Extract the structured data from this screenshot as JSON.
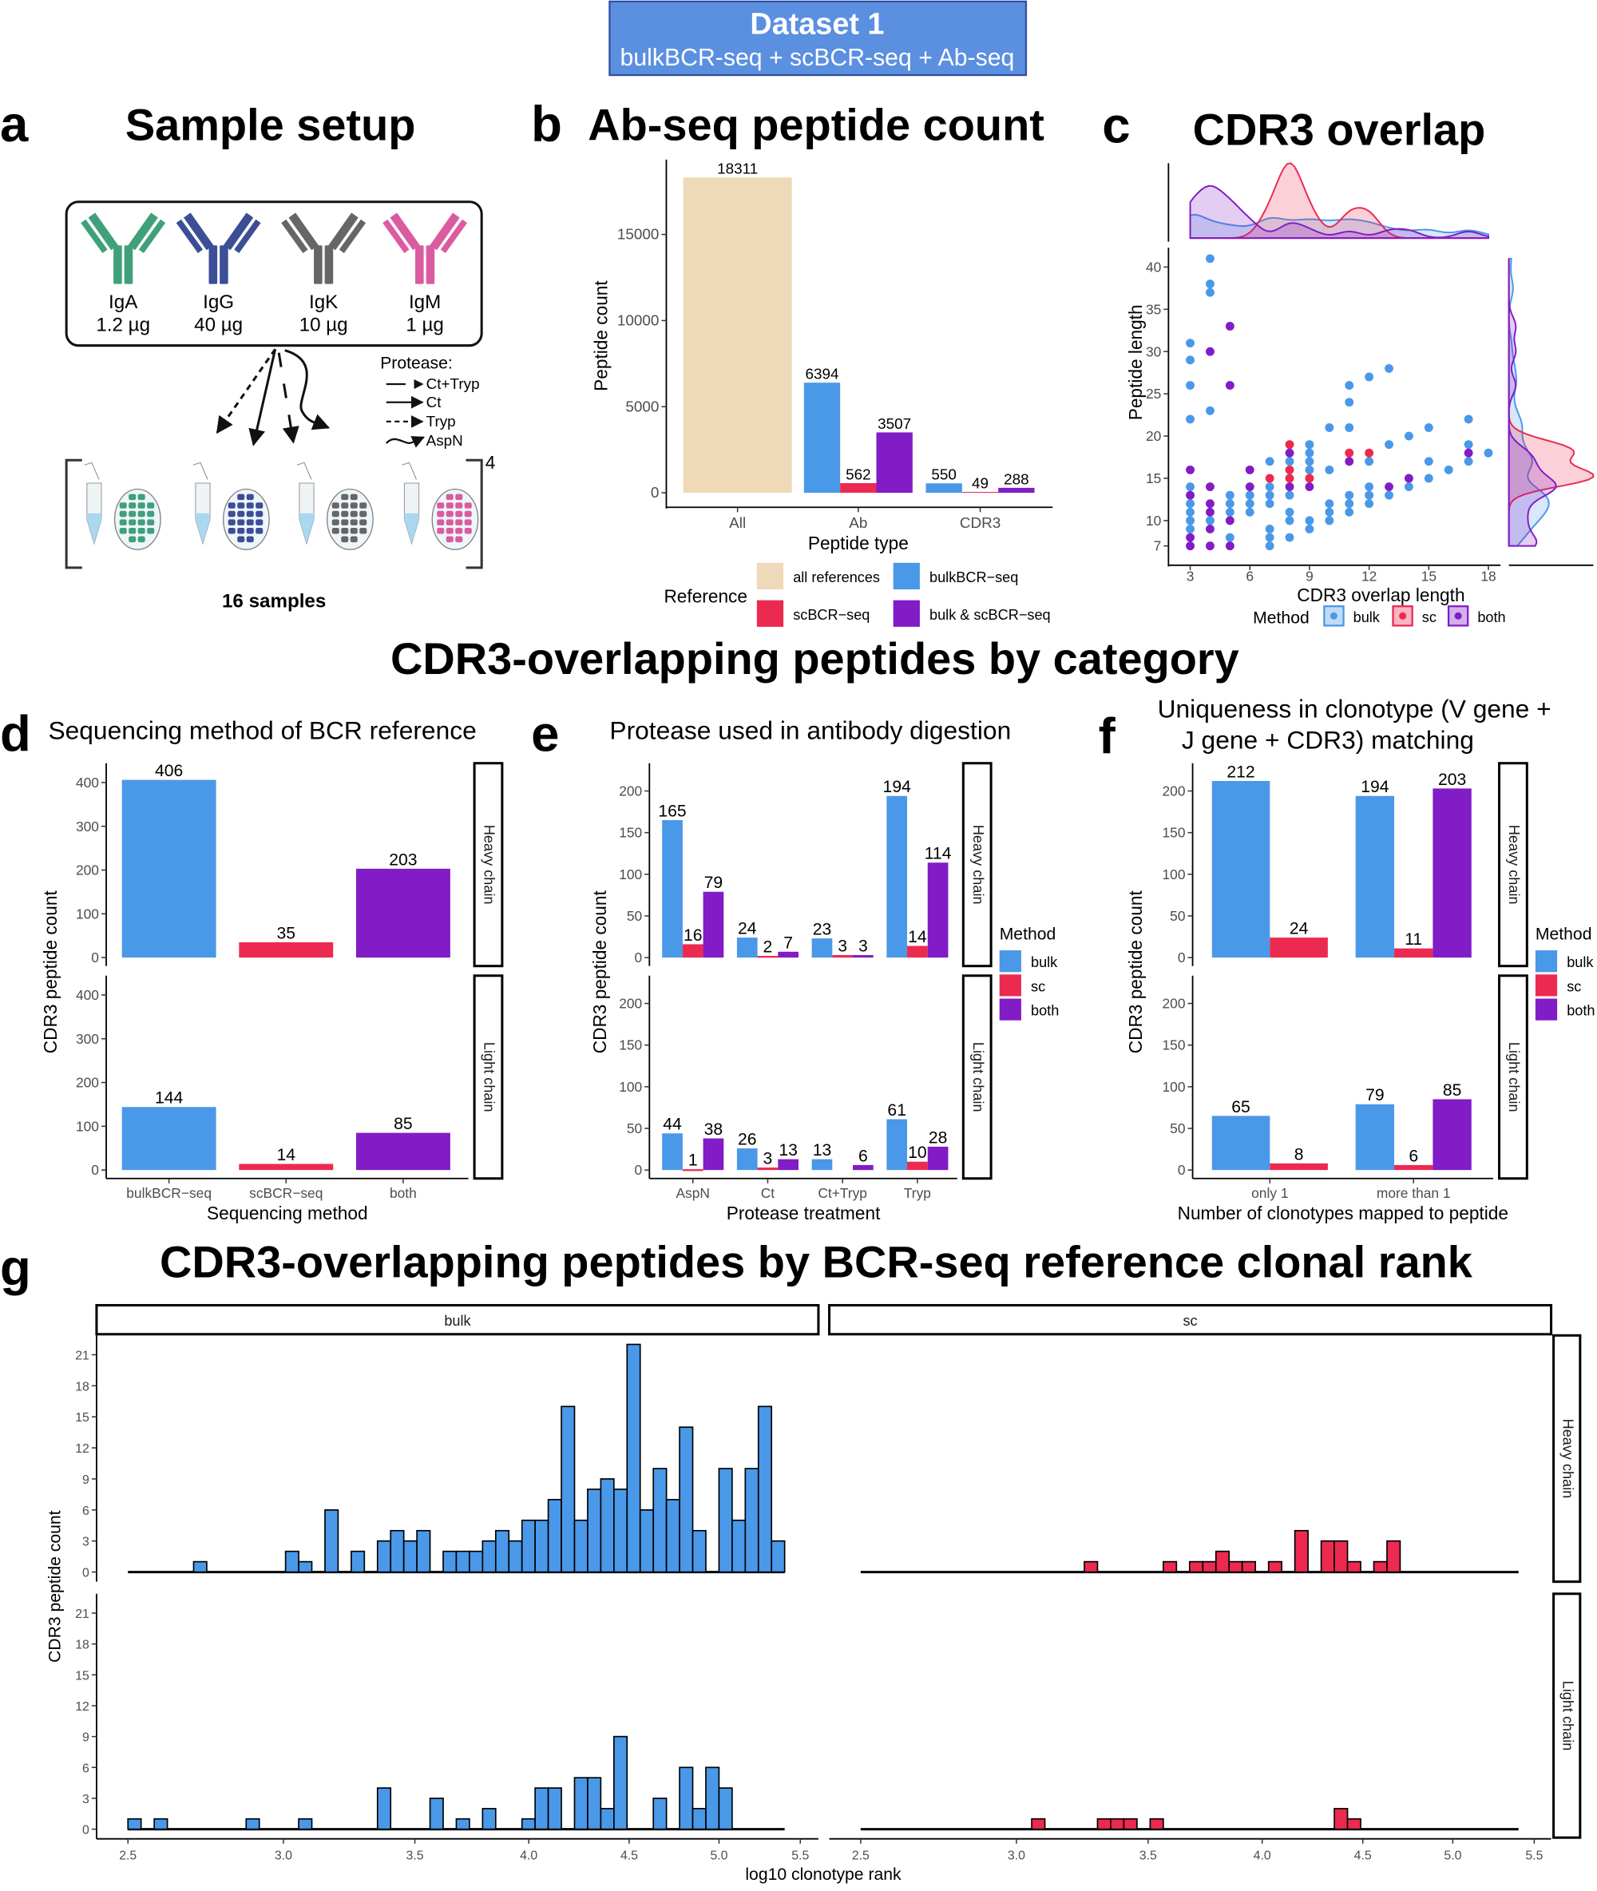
{
  "header": {
    "title": "Dataset 1",
    "subtitle": "bulkBCR-seq + scBCR-seq + Ab-seq",
    "color": "#5B8FE0"
  },
  "colors": {
    "bulk": "#4A98E8",
    "sc": "#EC2A50",
    "both": "#821CC6",
    "all": "#EED9B8"
  },
  "panel_a": {
    "label": "a",
    "title": "Sample setup",
    "antibodies": [
      {
        "name": "IgA",
        "amount": "1.2 µg",
        "color": "#3FA07A"
      },
      {
        "name": "IgG",
        "amount": "40 µg",
        "color": "#3C4E96"
      },
      {
        "name": "IgK",
        "amount": "10 µg",
        "color": "#666666"
      },
      {
        "name": "IgM",
        "amount": "1 µg",
        "color": "#DB5BA0"
      }
    ],
    "protease_title": "Protease:",
    "proteases": [
      "Ct+Tryp",
      "Ct",
      "Tryp",
      "AspN"
    ],
    "replicates": "4",
    "samples": "16 samples"
  },
  "section_title": "CDR3-overlapping peptides by category",
  "chart_data": [
    {
      "panel": "b",
      "label": "b",
      "title": "Ab-seq peptide count",
      "type": "bar",
      "xlabel": "Peptide type",
      "ylabel": "Peptide count",
      "categories": [
        "All",
        "Ab",
        "CDR3"
      ],
      "yticks": [
        0,
        5000,
        10000,
        15000
      ],
      "legend_title": "Reference",
      "legend_position": "bottom",
      "series": [
        {
          "name": "all references",
          "color": "all",
          "values": [
            18311,
            null,
            null
          ]
        },
        {
          "name": "bulkBCR−seq",
          "color": "bulk",
          "values": [
            null,
            6394,
            550
          ]
        },
        {
          "name": "scBCR−seq",
          "color": "sc",
          "values": [
            null,
            562,
            49
          ]
        },
        {
          "name": "bulk & scBCR−seq",
          "color": "both",
          "values": [
            null,
            3507,
            288
          ]
        }
      ]
    },
    {
      "panel": "c",
      "label": "c",
      "title": "CDR3 overlap",
      "type": "scatter",
      "xlabel": "CDR3 overlap length",
      "ylabel": "Peptide length",
      "xticks": [
        3,
        6,
        9,
        12,
        15,
        18
      ],
      "yticks": [
        7,
        10,
        15,
        20,
        25,
        30,
        35,
        40
      ],
      "marginal": "density",
      "legend_title": "Method",
      "legend_position": "bottom",
      "series": [
        {
          "name": "bulk",
          "color": "bulk",
          "points": [
            [
              3,
              31
            ],
            [
              3,
              29
            ],
            [
              3,
              26
            ],
            [
              3,
              22
            ],
            [
              3,
              14
            ],
            [
              3,
              12
            ],
            [
              3,
              11
            ],
            [
              3,
              10
            ],
            [
              3,
              9
            ],
            [
              4,
              41
            ],
            [
              4,
              38
            ],
            [
              4,
              37
            ],
            [
              4,
              23
            ],
            [
              4,
              10
            ],
            [
              5,
              13
            ],
            [
              5,
              12
            ],
            [
              5,
              11
            ],
            [
              5,
              8
            ],
            [
              6,
              13
            ],
            [
              6,
              12
            ],
            [
              6,
              11
            ],
            [
              7,
              17
            ],
            [
              7,
              14
            ],
            [
              7,
              13
            ],
            [
              7,
              12
            ],
            [
              7,
              9
            ],
            [
              7,
              8
            ],
            [
              7,
              7
            ],
            [
              8,
              17
            ],
            [
              8,
              13
            ],
            [
              8,
              11
            ],
            [
              8,
              10
            ],
            [
              8,
              8
            ],
            [
              9,
              19
            ],
            [
              9,
              18
            ],
            [
              9,
              17
            ],
            [
              9,
              16
            ],
            [
              9,
              10
            ],
            [
              9,
              9
            ],
            [
              10,
              21
            ],
            [
              10,
              16
            ],
            [
              10,
              12
            ],
            [
              10,
              11
            ],
            [
              10,
              10
            ],
            [
              11,
              26
            ],
            [
              11,
              24
            ],
            [
              11,
              21
            ],
            [
              11,
              13
            ],
            [
              11,
              12
            ],
            [
              11,
              11
            ],
            [
              12,
              27
            ],
            [
              12,
              17
            ],
            [
              12,
              14
            ],
            [
              12,
              13
            ],
            [
              12,
              12
            ],
            [
              13,
              28
            ],
            [
              13,
              19
            ],
            [
              13,
              13
            ],
            [
              14,
              20
            ],
            [
              14,
              14
            ],
            [
              15,
              21
            ],
            [
              15,
              17
            ],
            [
              15,
              15
            ],
            [
              16,
              16
            ],
            [
              17,
              22
            ],
            [
              17,
              19
            ],
            [
              17,
              17
            ],
            [
              18,
              18
            ]
          ]
        },
        {
          "name": "sc",
          "color": "sc",
          "points": [
            [
              7,
              15
            ],
            [
              8,
              19
            ],
            [
              8,
              16
            ],
            [
              8,
              15
            ],
            [
              9,
              15
            ],
            [
              11,
              18
            ],
            [
              12,
              18
            ]
          ]
        },
        {
          "name": "both",
          "color": "both",
          "points": [
            [
              3,
              16
            ],
            [
              3,
              13
            ],
            [
              3,
              8
            ],
            [
              3,
              7
            ],
            [
              4,
              30
            ],
            [
              4,
              14
            ],
            [
              4,
              12
            ],
            [
              4,
              11
            ],
            [
              4,
              9
            ],
            [
              4,
              7
            ],
            [
              5,
              33
            ],
            [
              5,
              26
            ],
            [
              5,
              10
            ],
            [
              5,
              7
            ],
            [
              6,
              16
            ],
            [
              6,
              14
            ],
            [
              8,
              18
            ],
            [
              8,
              14
            ],
            [
              9,
              14
            ],
            [
              11,
              17
            ],
            [
              13,
              14
            ],
            [
              14,
              15
            ],
            [
              17,
              18
            ]
          ]
        }
      ]
    },
    {
      "panel": "d",
      "label": "d",
      "title": "Sequencing method of BCR reference",
      "type": "bar",
      "xlabel": "Sequencing method",
      "ylabel": "CDR3 peptide count",
      "categories": [
        "bulkBCR−seq",
        "scBCR−seq",
        "both"
      ],
      "bar_colors": [
        "bulk",
        "sc",
        "both"
      ],
      "yticks": [
        0,
        100,
        200,
        300,
        400
      ],
      "facets": [
        {
          "name": "Heavy chain",
          "values": [
            406,
            35,
            203
          ]
        },
        {
          "name": "Light chain",
          "values": [
            144,
            14,
            85
          ]
        }
      ]
    },
    {
      "panel": "e",
      "label": "e",
      "title": "Protease used in antibody digestion",
      "type": "bar",
      "xlabel": "Protease treatment",
      "ylabel": "CDR3 peptide count",
      "categories": [
        "AspN",
        "Ct",
        "Ct+Tryp",
        "Tryp"
      ],
      "yticks": [
        0,
        50,
        100,
        150,
        200
      ],
      "legend_title": "Method",
      "legend": [
        "bulk",
        "sc",
        "both"
      ],
      "legend_position": "right",
      "facets": [
        {
          "name": "Heavy chain",
          "series": [
            {
              "name": "bulk",
              "values": [
                165,
                24,
                23,
                194
              ]
            },
            {
              "name": "sc",
              "values": [
                16,
                2,
                3,
                14
              ]
            },
            {
              "name": "both",
              "values": [
                79,
                7,
                3,
                114
              ]
            }
          ]
        },
        {
          "name": "Light chain",
          "series": [
            {
              "name": "bulk",
              "values": [
                44,
                26,
                13,
                61
              ]
            },
            {
              "name": "sc",
              "values": [
                1,
                3,
                null,
                10
              ]
            },
            {
              "name": "both",
              "values": [
                38,
                13,
                6,
                28
              ]
            }
          ]
        }
      ]
    },
    {
      "panel": "f",
      "label": "f",
      "title_lines": [
        "Uniqueness in clonotype (V gene +",
        "J gene + CDR3) matching"
      ],
      "type": "bar",
      "xlabel": "Number of clonotypes mapped to peptide",
      "ylabel": "CDR3 peptide count",
      "categories": [
        "only 1",
        "more than 1"
      ],
      "yticks": [
        0,
        50,
        100,
        150,
        200
      ],
      "legend_title": "Method",
      "legend": [
        "bulk",
        "sc",
        "both"
      ],
      "legend_position": "right",
      "facets": [
        {
          "name": "Heavy chain",
          "series": [
            {
              "name": "bulk",
              "values": [
                212,
                194
              ]
            },
            {
              "name": "sc",
              "values": [
                24,
                11
              ]
            },
            {
              "name": "both",
              "values": [
                null,
                203
              ]
            }
          ]
        },
        {
          "name": "Light chain",
          "series": [
            {
              "name": "bulk",
              "values": [
                65,
                79
              ]
            },
            {
              "name": "sc",
              "values": [
                8,
                6
              ]
            },
            {
              "name": "both",
              "values": [
                null,
                85
              ]
            }
          ]
        }
      ]
    },
    {
      "panel": "g",
      "label": "g",
      "title": "CDR3-overlapping peptides by BCR-seq reference clonal rank",
      "type": "histogram",
      "xlabel": "log10 clonotype rank",
      "ylabel": "CDR3 peptide count",
      "x_scale": "log10",
      "bin_range": [
        2.5,
        5.4
      ],
      "bins": 50,
      "xticks": [
        "2.5",
        "3.0",
        "3.5",
        "4.0",
        "4.5",
        "5.0",
        "5.5"
      ],
      "yticks": [
        0,
        3,
        6,
        9,
        12,
        15,
        18,
        21
      ],
      "columns": [
        "bulk",
        "sc"
      ],
      "rows": [
        "Heavy chain",
        "Light chain"
      ],
      "facets": [
        {
          "method": "bulk",
          "chain": "Heavy chain",
          "counts": [
            0,
            0,
            0,
            0,
            0,
            1,
            0,
            0,
            0,
            0,
            0,
            0,
            2,
            1,
            0,
            6,
            0,
            2,
            0,
            3,
            4,
            3,
            4,
            0,
            2,
            2,
            2,
            3,
            4,
            3,
            5,
            5,
            7,
            16,
            5,
            8,
            9,
            8,
            22,
            6,
            10,
            7,
            14,
            4,
            0,
            10,
            5,
            10,
            16,
            3
          ]
        },
        {
          "method": "bulk",
          "chain": "Light chain",
          "counts": [
            1,
            0,
            1,
            0,
            0,
            0,
            0,
            0,
            0,
            1,
            0,
            0,
            0,
            1,
            0,
            0,
            0,
            0,
            0,
            4,
            0,
            0,
            0,
            3,
            0,
            1,
            0,
            2,
            0,
            0,
            1,
            4,
            4,
            0,
            5,
            5,
            2,
            9,
            0,
            0,
            3,
            0,
            6,
            2,
            6,
            4,
            0,
            0,
            0,
            0
          ]
        },
        {
          "method": "sc",
          "chain": "Heavy chain",
          "counts": [
            0,
            0,
            0,
            0,
            0,
            0,
            0,
            0,
            0,
            0,
            0,
            0,
            0,
            0,
            0,
            0,
            0,
            1,
            0,
            0,
            0,
            0,
            0,
            1,
            0,
            1,
            1,
            2,
            1,
            1,
            0,
            1,
            0,
            4,
            0,
            3,
            3,
            1,
            0,
            1,
            3,
            0,
            0,
            0,
            0,
            0,
            0,
            0,
            0,
            0
          ]
        },
        {
          "method": "sc",
          "chain": "Light chain",
          "counts": [
            0,
            0,
            0,
            0,
            0,
            0,
            0,
            0,
            0,
            0,
            0,
            0,
            0,
            1,
            0,
            0,
            0,
            0,
            1,
            1,
            1,
            0,
            1,
            0,
            0,
            0,
            0,
            0,
            0,
            0,
            0,
            0,
            0,
            0,
            0,
            0,
            2,
            1,
            0,
            0,
            0,
            0,
            0,
            0,
            0,
            0,
            0,
            0,
            0,
            0
          ]
        }
      ]
    }
  ]
}
